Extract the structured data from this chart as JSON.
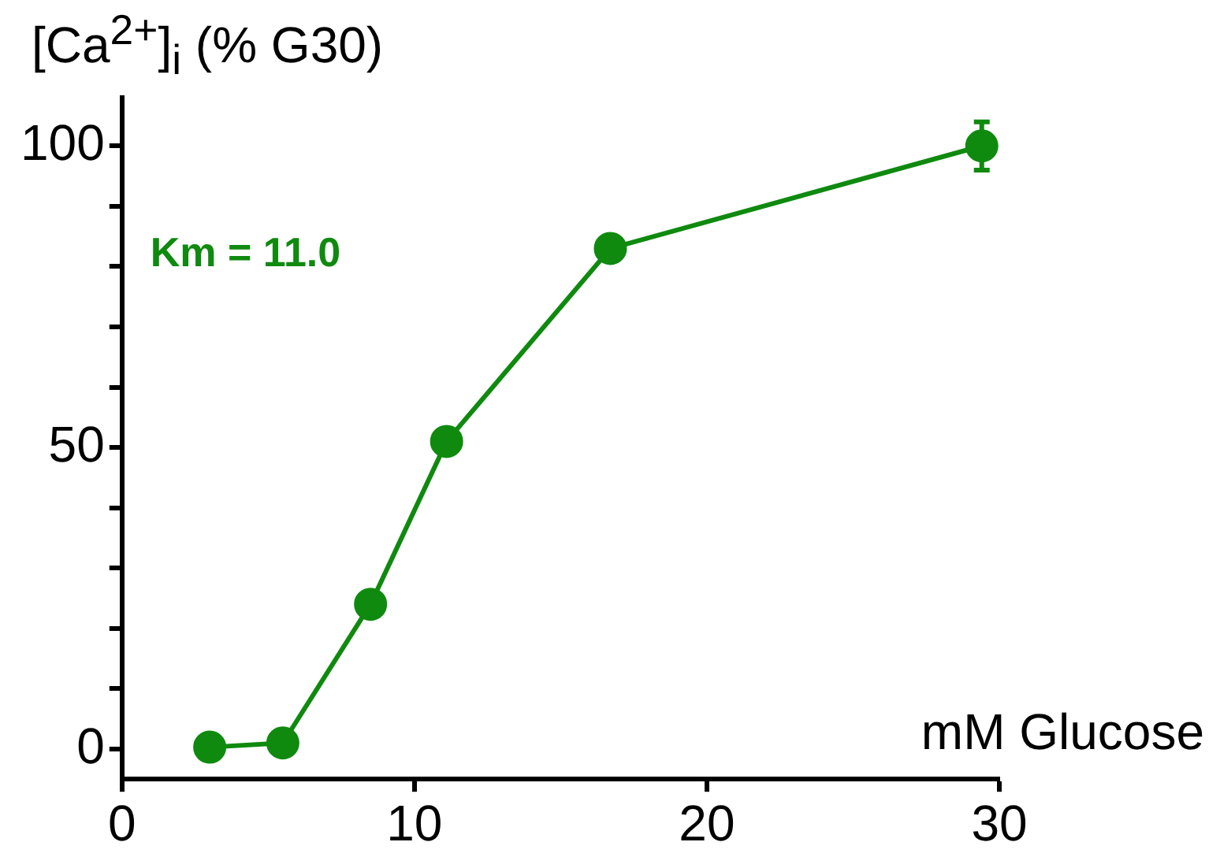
{
  "chart_data": {
    "type": "line",
    "ylabel": "[Ca$^{2+}$]$_{i}$ (% G30)",
    "xlabel": "mM Glucose",
    "annotations": [
      "Km = 11.0"
    ],
    "x": [
      3,
      5.5,
      8.5,
      11.1,
      16.7,
      29.4
    ],
    "series": [
      {
        "color": "#0f8a0f",
        "values": [
          0.3,
          1,
          24,
          51,
          83,
          100
        ],
        "errors": [
          null,
          null,
          null,
          null,
          null,
          4
        ]
      }
    ],
    "xlim": [
      0,
      30
    ],
    "xticks": [
      0,
      10,
      20,
      30
    ],
    "ylim": [
      -5,
      108
    ],
    "yticks": [
      0,
      {
        "value": 10,
        "label": null
      },
      {
        "value": 20,
        "label": null
      },
      {
        "value": 30,
        "label": null
      },
      {
        "value": 40,
        "label": null
      },
      50,
      {
        "value": 60,
        "label": null
      },
      {
        "value": 70,
        "label": null
      },
      {
        "value": 80,
        "label": null
      },
      {
        "value": 90,
        "label": null
      },
      100
    ],
    "marker": "circle",
    "line_style": "solid",
    "grid": false,
    "legend": false
  }
}
